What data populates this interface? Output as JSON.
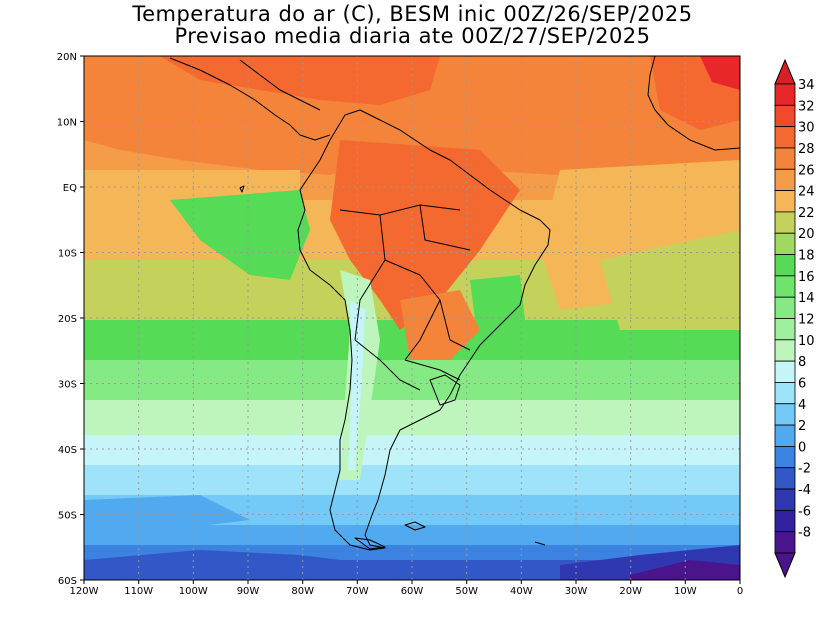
{
  "title_line1": "Temperatura do ar (C), BESM inic 00Z/26/SEP/2025",
  "title_line2": "Previsao media diaria ate 00Z/27/SEP/2025",
  "lat_labels": [
    "20N",
    "10N",
    "EQ",
    "10S",
    "20S",
    "30S",
    "40S",
    "50S",
    "60S"
  ],
  "lon_labels": [
    "120W",
    "110W",
    "100W",
    "90W",
    "80W",
    "70W",
    "60W",
    "50W",
    "40W",
    "30W",
    "20W",
    "10W",
    "0"
  ],
  "colorbar": {
    "labels": [
      "34",
      "32",
      "30",
      "28",
      "26",
      "24",
      "22",
      "20",
      "18",
      "16",
      "14",
      "12",
      "10",
      "8",
      "6",
      "4",
      "2",
      "0",
      "-2",
      "-4",
      "-6",
      "-8"
    ],
    "colors": [
      "#e8272b",
      "#f04a2c",
      "#f36930",
      "#f4843a",
      "#f49c47",
      "#f5b658",
      "#c4d25b",
      "#a0d860",
      "#55db55",
      "#6ee46c",
      "#86ea84",
      "#a0ef9e",
      "#bdf5bc",
      "#c5f5f8",
      "#9ee3f9",
      "#74caf7",
      "#51a9ef",
      "#3c82e0",
      "#3158c6",
      "#2f38b0",
      "#3321a0",
      "#4a148c"
    ],
    "top_arrow_color": "#d42026",
    "bottom_arrow_color": "#4a148c"
  },
  "map_colors": {
    "hot": "#f36930",
    "warm": "#f4843a",
    "orange": "#f49c47",
    "tan": "#f5b658",
    "lime": "#a0d860",
    "green": "#55db55",
    "lightgreen": "#86ea84",
    "palegreen": "#bdf5bc",
    "cyanpale": "#c5f5f8",
    "sky": "#9ee3f9",
    "blue": "#74caf7",
    "midblue": "#51a9ef",
    "deepblue": "#3c82e0",
    "navy": "#3158c6",
    "darknavy": "#2f38b0",
    "purple": "#3321a0"
  }
}
